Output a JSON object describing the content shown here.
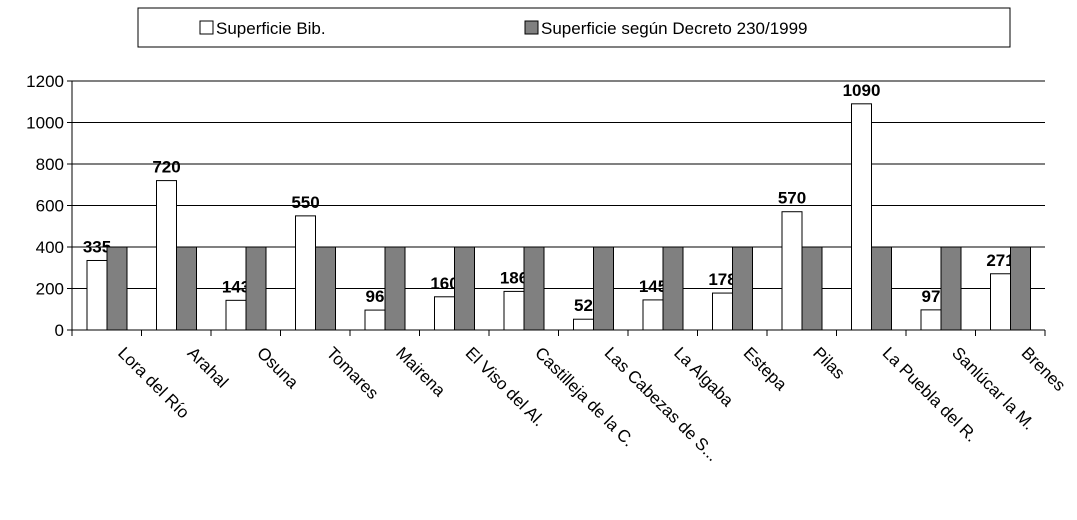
{
  "chart_data": {
    "type": "bar",
    "categories": [
      "Lora del Río",
      "Arahal",
      "Osuna",
      "Tomares",
      "Mairena",
      "El Viso del Al.",
      "Castilleja de la C.",
      "Las Cabezas de S...",
      "La Algaba",
      "Estepa",
      "Pilas",
      "La Puebla del R.",
      "Sanlúcar la M.",
      "Brenes"
    ],
    "series": [
      {
        "name": "Superficie Bib.",
        "color": "#ffffff",
        "values": [
          335,
          720,
          143,
          550,
          96,
          160,
          186,
          52,
          145,
          178,
          570,
          1090,
          97,
          271
        ]
      },
      {
        "name": "Superficie según Decreto 230/1999",
        "color": "#808080",
        "values": [
          400,
          400,
          400,
          400,
          400,
          400,
          400,
          400,
          400,
          400,
          400,
          400,
          400,
          400
        ]
      }
    ],
    "ylim": [
      0,
      1200
    ],
    "yticks": [
      0,
      200,
      400,
      600,
      800,
      1000,
      1200
    ],
    "grid": true
  }
}
